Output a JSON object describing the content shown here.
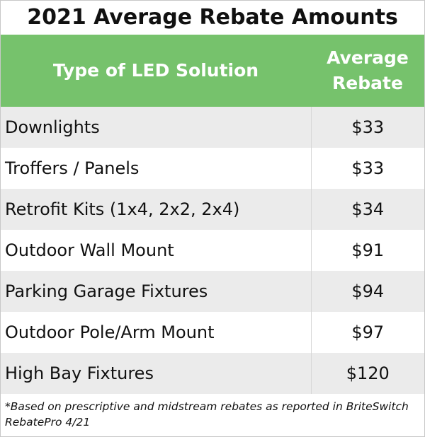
{
  "title": "2021 Average Rebate Amounts",
  "table": {
    "header": [
      "Type of LED Solution",
      "Average Rebate"
    ],
    "rows": [
      [
        "Downlights",
        "$33"
      ],
      [
        "Troffers / Panels",
        "$33"
      ],
      [
        "Retrofit Kits (1x4, 2x2, 2x4)",
        "$34"
      ],
      [
        "Outdoor Wall Mount",
        "$91"
      ],
      [
        "Parking Garage Fixtures",
        "$94"
      ],
      [
        "Outdoor Pole/Arm Mount",
        "$97"
      ],
      [
        "High Bay Fixtures",
        "$120"
      ]
    ]
  },
  "footnote": "*Based on prescriptive and midstream rebates as reported in BriteSwitch RebatePro 4/21"
}
